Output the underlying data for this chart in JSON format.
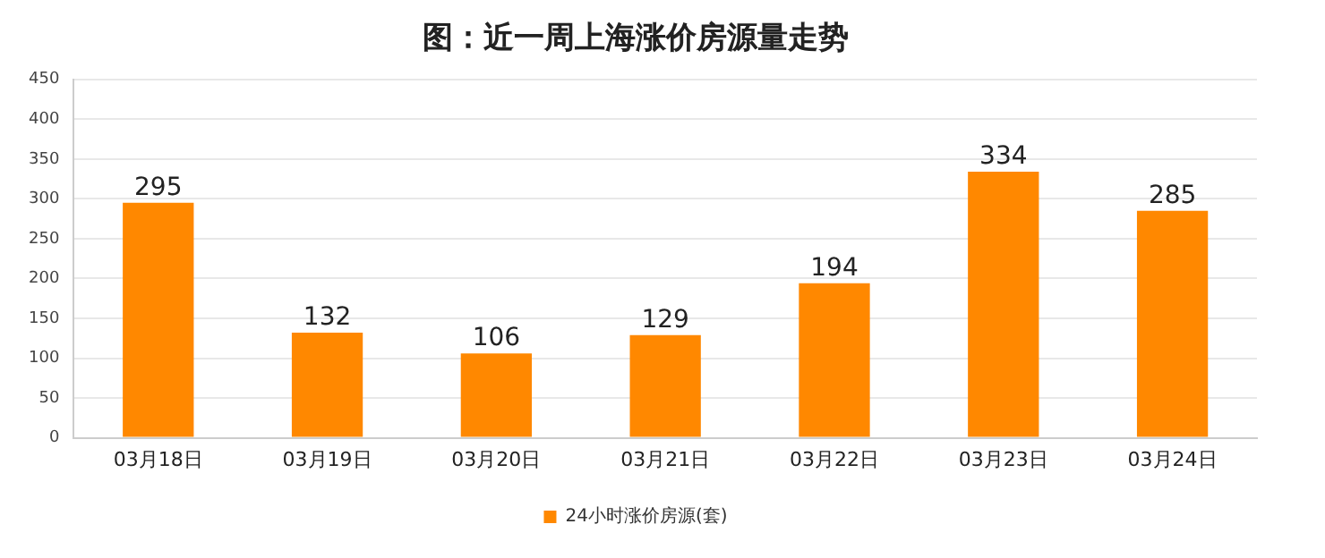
{
  "chart_data": {
    "type": "bar",
    "title": "图：近一周上海涨价房源量走势",
    "categories": [
      "03月18日",
      "03月19日",
      "03月20日",
      "03月21日",
      "03月22日",
      "03月23日",
      "03月24日"
    ],
    "series": [
      {
        "name": "24小时涨价房源(套)",
        "color": "#ff8800",
        "values": [
          295,
          132,
          106,
          129,
          194,
          334,
          285
        ]
      }
    ],
    "ylim": [
      0,
      450
    ],
    "yticks": [
      0,
      50,
      100,
      150,
      200,
      250,
      300,
      350,
      400,
      450
    ],
    "grid": "y",
    "legend": "bottom",
    "data_labels": true
  }
}
